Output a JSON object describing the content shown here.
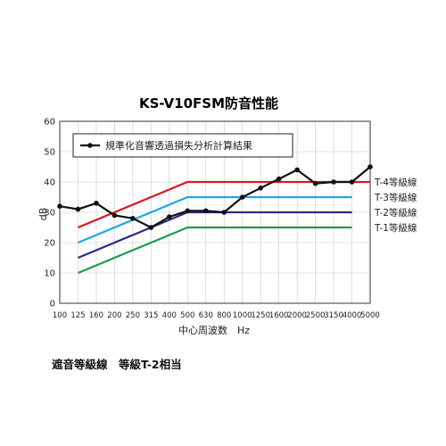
{
  "chart_data": {
    "type": "line",
    "title": "KS-V10FSM防音性能",
    "xlabel": "中心周波数　Hz",
    "ylabel": "dB",
    "ylim": [
      0,
      60
    ],
    "yticks": [
      "0",
      "10",
      "20",
      "30",
      "40",
      "50",
      "60"
    ],
    "categories": [
      "100",
      "125",
      "160",
      "200",
      "250",
      "315",
      "400",
      "500",
      "630",
      "800",
      "1000",
      "1250",
      "1600",
      "2000",
      "2500",
      "3150",
      "4000",
      "5000"
    ],
    "grid": true,
    "legend_position": "top-left",
    "series": [
      {
        "name": "規準化音響透過損失分析計算結果",
        "color": "#111111",
        "values": [
          32,
          31,
          33,
          29,
          28,
          25,
          28.5,
          30.5,
          30.5,
          30,
          35,
          38,
          41,
          44,
          39.5,
          40,
          40,
          45
        ]
      }
    ],
    "reference_lines": [
      {
        "name": "T-4等級線",
        "color": "#d71920",
        "points": [
          [
            125,
            25
          ],
          [
            500,
            40
          ],
          [
            5000,
            40
          ]
        ]
      },
      {
        "name": "T-3等級線",
        "color": "#1fa8e0",
        "points": [
          [
            125,
            20
          ],
          [
            500,
            35
          ],
          [
            4000,
            35
          ]
        ]
      },
      {
        "name": "T-2等級線",
        "color": "#2b2a86",
        "points": [
          [
            125,
            15
          ],
          [
            500,
            30
          ],
          [
            4000,
            30
          ]
        ]
      },
      {
        "name": "T-1等級線",
        "color": "#1e9c4a",
        "points": [
          [
            125,
            10
          ],
          [
            500,
            25
          ],
          [
            4000,
            25
          ]
        ]
      }
    ],
    "annotation": "遮音等級線　等級T-2相当"
  }
}
